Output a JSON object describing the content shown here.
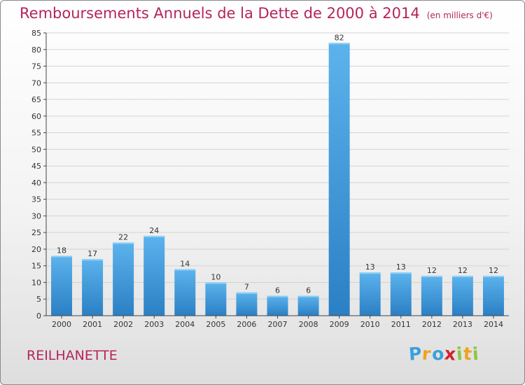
{
  "title": "Remboursements Annuels de la Dette de 2000 à 2014",
  "unit_note": "(en milliers d'€)",
  "place_name": "REILHANETTE",
  "logo": {
    "letters": [
      "P",
      "r",
      "o",
      "x",
      "i",
      "t",
      "i"
    ],
    "colors": [
      "#3aa0dc",
      "#f0a21d",
      "#3aa0dc",
      "#d2232a",
      "#8cc63f",
      "#f0a21d",
      "#8cc63f"
    ]
  },
  "colors": {
    "bar_light": "#5cb3ec",
    "bar_dark": "#2b7fc4",
    "title": "#b5245c"
  },
  "chart_data": {
    "type": "bar",
    "categories": [
      "2000",
      "2001",
      "2002",
      "2003",
      "2004",
      "2005",
      "2006",
      "2007",
      "2008",
      "2009",
      "2010",
      "2011",
      "2012",
      "2013",
      "2014"
    ],
    "values": [
      18,
      17,
      22,
      24,
      14,
      10,
      7,
      6,
      6,
      82,
      13,
      13,
      12,
      12,
      12
    ],
    "value_labels": [
      "18",
      "17",
      "22",
      "24",
      "14",
      "10",
      "7",
      "6",
      "6",
      "82",
      "13",
      "13",
      "12",
      "12",
      "12"
    ],
    "yticks": [
      "0",
      "5",
      "10",
      "15",
      "20",
      "25",
      "30",
      "35",
      "40",
      "45",
      "50",
      "55",
      "60",
      "65",
      "70",
      "75",
      "80",
      "85"
    ],
    "ylim": [
      0,
      85
    ],
    "grid": true,
    "legend": "none"
  }
}
